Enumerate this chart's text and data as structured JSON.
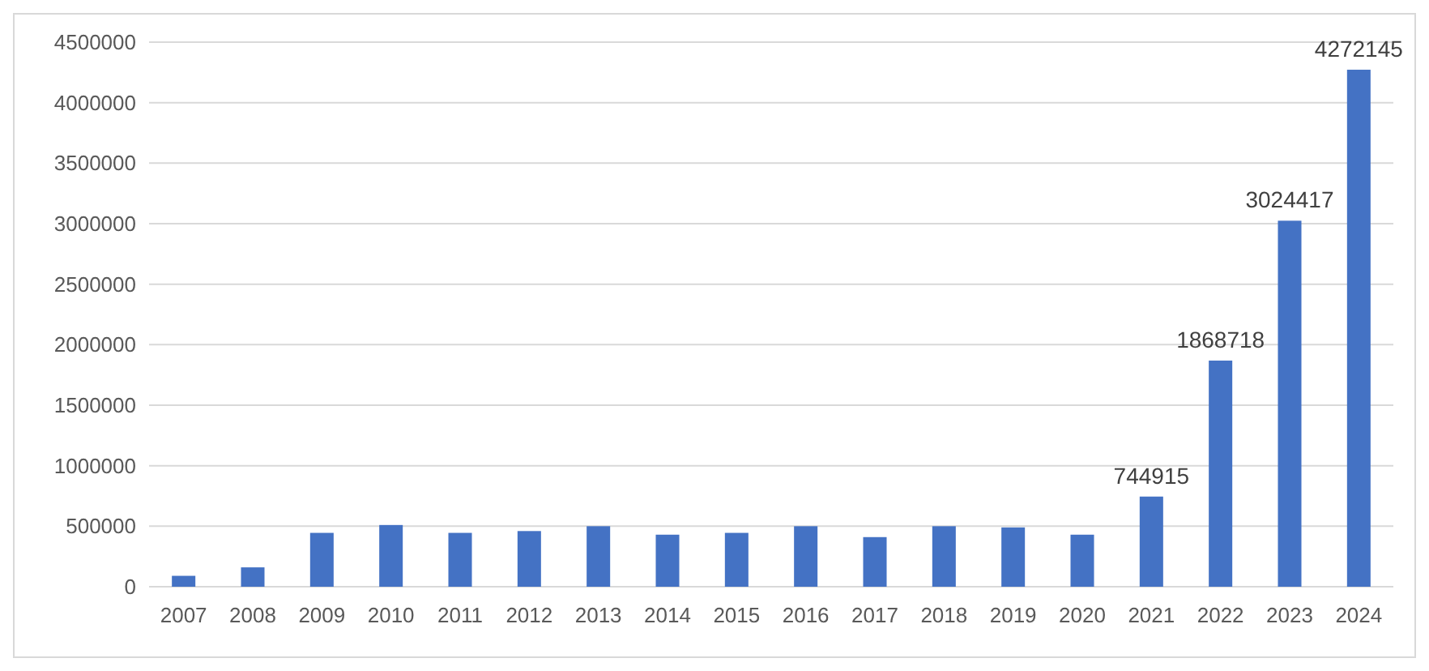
{
  "chart_data": {
    "type": "bar",
    "categories": [
      "2007",
      "2008",
      "2009",
      "2010",
      "2011",
      "2012",
      "2013",
      "2014",
      "2015",
      "2016",
      "2017",
      "2018",
      "2019",
      "2020",
      "2021",
      "2022",
      "2023",
      "2024"
    ],
    "values": [
      90000,
      160000,
      445000,
      510000,
      445000,
      460000,
      500000,
      430000,
      445000,
      500000,
      410000,
      500000,
      490000,
      430000,
      744915,
      1868718,
      3024417,
      4272145
    ],
    "value_labels": [
      null,
      null,
      null,
      null,
      null,
      null,
      null,
      null,
      null,
      null,
      null,
      null,
      null,
      null,
      "744915",
      "1868718",
      "3024417",
      "4272145"
    ],
    "color": "#4472c4",
    "ylim": [
      0,
      4500000
    ],
    "yticks": [
      0,
      500000,
      1000000,
      1500000,
      2000000,
      2500000,
      3000000,
      3500000,
      4000000,
      4500000
    ],
    "grid": "y"
  }
}
